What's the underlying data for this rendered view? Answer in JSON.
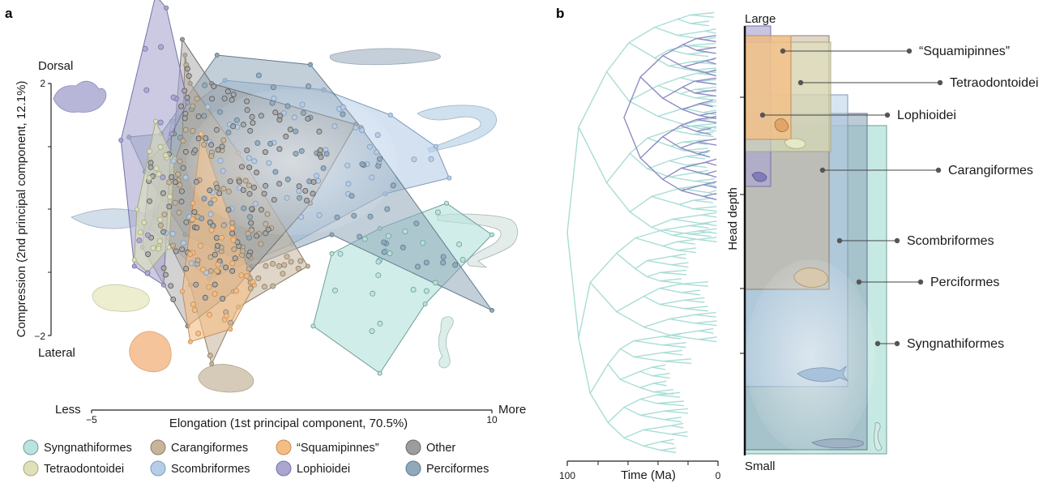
{
  "panels": {
    "a": "a",
    "b": "b"
  },
  "colors": {
    "Syngnathiformes": "#b9e3dd",
    "Carangiformes": "#c7b49a",
    "Squamipinnes": "#f5bd82",
    "Other": "#9c9c9c",
    "Tetraodontoidei": "#dfe2b8",
    "Scombriformes": "#b6cde7",
    "Lophioidei": "#a9a6cf",
    "Perciformes": "#8fa8ba",
    "tree_lophio": "#8e8cc4",
    "tree_main": "#a9ddd6"
  },
  "chart_data": [
    {
      "type": "scatter",
      "xlabel": "Elongation (1st principal component, 70.5%)",
      "ylabel": "Compression (2nd principal component, 12.1%)",
      "xlim": [
        -5,
        10
      ],
      "ylim": [
        -2,
        2
      ],
      "x_ticks": [
        "−5",
        "10"
      ],
      "y_ticks": [
        "2",
        "−2"
      ],
      "x_end_labels": {
        "low": "Less",
        "high": "More"
      },
      "y_end_labels": {
        "high": "Dorsal",
        "low": "Lateral"
      },
      "legend_position": "bottom",
      "legend": [
        "Syngnathiformes",
        "Carangiformes",
        "“Squamipinnes”",
        "Other",
        "Tetraodontoidei",
        "Scombriformes",
        "Lophioidei",
        "Perciformes"
      ],
      "hulls": [
        {
          "name": "Syngnathiformes",
          "points": [
            [
              5.8,
              -0.3
            ],
            [
              8.3,
              0.1
            ],
            [
              10.0,
              -0.4
            ],
            [
              7.5,
              -1.5
            ],
            [
              5.8,
              -2.6
            ],
            [
              3.3,
              -1.85
            ],
            [
              4.0,
              -0.7
            ]
          ]
        },
        {
          "name": "Scombriformes",
          "points": [
            [
              -2.0,
              1.4
            ],
            [
              0.0,
              2.05
            ],
            [
              3.7,
              1.9
            ],
            [
              6.2,
              1.5
            ],
            [
              7.9,
              1.0
            ],
            [
              8.4,
              0.5
            ],
            [
              6.0,
              0.25
            ],
            [
              2.5,
              -0.55
            ],
            [
              -0.6,
              -1.1
            ],
            [
              -2.8,
              -0.3
            ]
          ]
        },
        {
          "name": "Perciformes",
          "points": [
            [
              -0.3,
              2.45
            ],
            [
              3.2,
              2.3
            ],
            [
              5.1,
              1.3
            ],
            [
              10.0,
              -1.6
            ],
            [
              4.0,
              -0.4
            ],
            [
              1.0,
              -0.9
            ],
            [
              -1.5,
              -0.4
            ],
            [
              -3.0,
              0.6
            ],
            [
              -3.6,
              1.15
            ],
            [
              -2.4,
              1.2
            ]
          ]
        },
        {
          "name": "Carangiformes",
          "points": [
            [
              -1.5,
              2.45
            ],
            [
              -1.3,
              2.0
            ],
            [
              0.5,
              0.9
            ],
            [
              3.1,
              -0.9
            ],
            [
              0.5,
              -1.55
            ],
            [
              -0.5,
              -2.45
            ],
            [
              -1.3,
              -1.2
            ],
            [
              -2.6,
              -0.1
            ],
            [
              -1.6,
              1.1
            ]
          ]
        },
        {
          "name": "Other",
          "points": [
            [
              -1.6,
              2.7
            ],
            [
              -0.5,
              2.0
            ],
            [
              4.9,
              1.35
            ],
            [
              3.2,
              0.1
            ],
            [
              0.3,
              -1.3
            ],
            [
              -1.4,
              -1.85
            ],
            [
              -3.1,
              -0.6
            ],
            [
              -2.8,
              0.8
            ],
            [
              -1.9,
              1.2
            ]
          ]
        },
        {
          "name": "Lophioidei",
          "points": [
            [
              -2.6,
              3.4
            ],
            [
              -2.2,
              3.2
            ],
            [
              -1.4,
              1.7
            ],
            [
              -2.0,
              1.2
            ],
            [
              -2.3,
              -1.2
            ],
            [
              -3.4,
              -0.9
            ],
            [
              -3.9,
              1.1
            ]
          ]
        },
        {
          "name": "Tetraodontoidei",
          "points": [
            [
              -2.6,
              1.4
            ],
            [
              -1.9,
              0.8
            ],
            [
              -2.1,
              -0.6
            ],
            [
              -2.9,
              -1.0
            ],
            [
              -3.4,
              -0.8
            ],
            [
              -3.3,
              0.0
            ]
          ]
        },
        {
          "name": "Squamipinnes",
          "points": [
            [
              -0.9,
              1.2
            ],
            [
              0.3,
              -0.3
            ],
            [
              1.1,
              -1.2
            ],
            [
              0.2,
              -1.9
            ],
            [
              -1.3,
              -2.1
            ],
            [
              -1.6,
              -1.3
            ],
            [
              -1.2,
              0.1
            ]
          ]
        }
      ]
    },
    {
      "type": "tree",
      "xlabel": "Time (Ma)",
      "x_ticks": [
        "100",
        "0"
      ],
      "xlim": [
        100,
        0
      ]
    },
    {
      "type": "nested-rectangles",
      "ylabel": "Head depth",
      "y_end_labels": {
        "high": "Large",
        "low": "Small"
      },
      "rects": [
        {
          "name": "Syngnathiformes",
          "label": "Syngnathiformes"
        },
        {
          "name": "Perciformes",
          "label": "Perciformes"
        },
        {
          "name": "Scombriformes",
          "label": "Scombriformes"
        },
        {
          "name": "Carangiformes",
          "label": "Carangiformes"
        },
        {
          "name": "Lophioidei",
          "label": "Lophioidei"
        },
        {
          "name": "Tetraodontoidei",
          "label": "Tetraodontoidei"
        },
        {
          "name": "Squamipinnes",
          "label": "“Squamipinnes”"
        }
      ]
    }
  ]
}
